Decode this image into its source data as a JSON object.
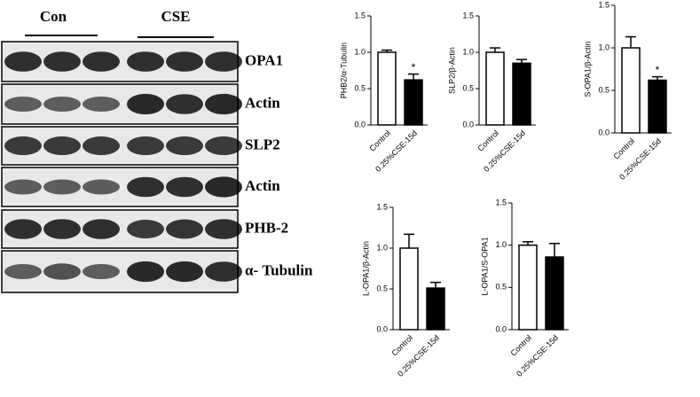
{
  "blot": {
    "groups": [
      "Con",
      "CSE"
    ],
    "rows": [
      "OPA1",
      "Actin",
      "SLP2",
      "Actin",
      "PHB-2",
      "α- Tubulin"
    ]
  },
  "chart_data": [
    {
      "type": "bar",
      "ylabel": "PHB2/α-Tubulin",
      "categories": [
        "Control",
        "0.25%CSE-15d"
      ],
      "values": [
        1.0,
        0.62
      ],
      "errors": [
        0.03,
        0.08
      ],
      "value_annotations": [
        null,
        "*"
      ],
      "colors": [
        "#ffffff",
        "#000000"
      ],
      "ylim": [
        0,
        1.5
      ],
      "yticks": [
        {
          "value": 0,
          "label": "0.0"
        },
        0.5,
        {
          "value": 1,
          "label": "1.0"
        },
        1.5
      ]
    },
    {
      "type": "bar",
      "ylabel": "SLP2/β-Actin",
      "categories": [
        "Control",
        "0.25%CSE-15d"
      ],
      "values": [
        1.0,
        0.85
      ],
      "errors": [
        0.06,
        0.05
      ],
      "colors": [
        "#ffffff",
        "#000000"
      ],
      "ylim": [
        0,
        1.5
      ],
      "yticks": [
        {
          "value": 0,
          "label": "0.0"
        },
        0.5,
        {
          "value": 1,
          "label": "1.0"
        },
        1.5
      ]
    },
    {
      "type": "bar",
      "ylabel": "S-OPA1/β-Actin",
      "categories": [
        "Control",
        "0.25%CSE-15d"
      ],
      "values": [
        1.0,
        0.62
      ],
      "errors": [
        0.13,
        0.04
      ],
      "value_annotations": [
        null,
        "*"
      ],
      "colors": [
        "#ffffff",
        "#000000"
      ],
      "ylim": [
        0,
        1.5
      ],
      "yticks": [
        {
          "value": 0,
          "label": "0.0"
        },
        0.5,
        {
          "value": 1,
          "label": "1.0"
        },
        1.5
      ]
    },
    {
      "type": "bar",
      "ylabel": "L-OPA1/β-Actin",
      "categories": [
        "Control",
        "0.25%CSE-15d"
      ],
      "values": [
        1.0,
        0.51
      ],
      "errors": [
        0.17,
        0.07
      ],
      "colors": [
        "#ffffff",
        "#000000"
      ],
      "ylim": [
        0,
        1.5
      ],
      "yticks": [
        {
          "value": 0,
          "label": "0.0"
        },
        0.5,
        {
          "value": 1,
          "label": "1.0"
        },
        1.5
      ]
    },
    {
      "type": "bar",
      "ylabel": "L-OPA1/S-OPA1",
      "categories": [
        "Control",
        "0.25%CSE-15d"
      ],
      "values": [
        1.0,
        0.86
      ],
      "errors": [
        0.04,
        0.16
      ],
      "colors": [
        "#ffffff",
        "#000000"
      ],
      "ylim": [
        0,
        1.5
      ],
      "yticks": [
        {
          "value": 0,
          "label": "0.0"
        },
        0.5,
        {
          "value": 1,
          "label": "1.0"
        },
        1.5
      ]
    }
  ]
}
